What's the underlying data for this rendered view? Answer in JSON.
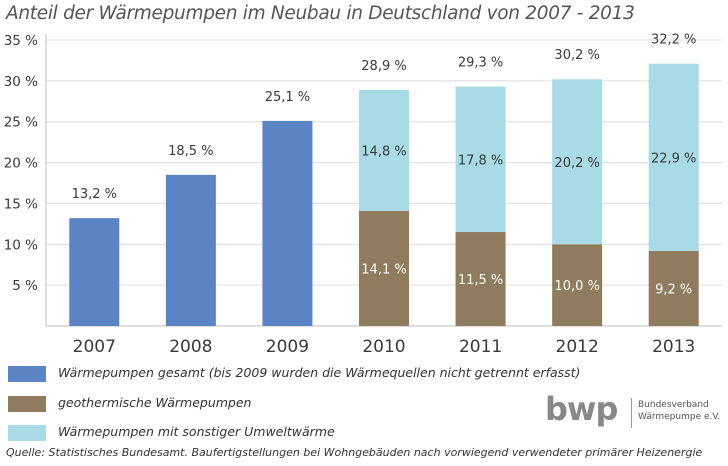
{
  "chart_data": {
    "type": "bar",
    "title": "Anteil der Wärmepumpen im Neubau in Deutschland von 2007 - 2013",
    "categories": [
      "2007",
      "2008",
      "2009",
      "2010",
      "2011",
      "2012",
      "2013"
    ],
    "ylim": [
      0,
      35
    ],
    "yticks": [
      "5 %",
      "10 %",
      "15 %",
      "20 %",
      "25 %",
      "30 %",
      "35 %"
    ],
    "yticks_values": [
      5,
      10,
      15,
      20,
      25,
      30,
      35
    ],
    "stacked": true,
    "series": [
      {
        "name": "Wärmepumpen gesamt (bis 2009 wurden die Wärmequellen nicht getrennt erfasst)",
        "color": "#5b84c4",
        "values": [
          13.2,
          18.5,
          25.1,
          null,
          null,
          null,
          null
        ],
        "labels": [
          "13,2 %",
          "18,5 %",
          "25,1 %",
          "",
          "",
          "",
          ""
        ]
      },
      {
        "name": "geothermische Wärmepumpen",
        "color": "#8f7b5e",
        "values": [
          null,
          null,
          null,
          14.1,
          11.5,
          10.0,
          9.2
        ],
        "labels": [
          "",
          "",
          "",
          "14,1 %",
          "11,5 %",
          "10,0 %",
          "9,2 %"
        ]
      },
      {
        "name": "Wärmepumpen mit sonstiger Umweltwärme",
        "color": "#a8dbe6",
        "values": [
          null,
          null,
          null,
          14.8,
          17.8,
          20.2,
          22.9
        ],
        "labels": [
          "",
          "",
          "",
          "14,8 %",
          "17,8 %",
          "20,2 %",
          "22,9 %"
        ]
      }
    ],
    "totals": [
      "",
      "",
      "",
      "28,9 %",
      "29,3 %",
      "30,2 %",
      "32,2 %"
    ],
    "grid": true
  },
  "legend": [
    {
      "label": "Wärmepumpen gesamt (bis 2009 wurden die Wärmequellen nicht getrennt erfasst)",
      "color": "#5b84c4"
    },
    {
      "label": "geothermische Wärmepumpen",
      "color": "#8f7b5e"
    },
    {
      "label": "Wärmepumpen mit sonstiger Umweltwärme",
      "color": "#a8dbe6"
    }
  ],
  "source": "Quelle: Statistisches Bundesamt. Baufertigstellungen bei Wohngebäuden nach vorwiegend verwendeter primärer Heizenergie",
  "logo": {
    "mark": "bwp",
    "line1": "Bundesverband",
    "line2": "Wärmepumpe e.V."
  }
}
